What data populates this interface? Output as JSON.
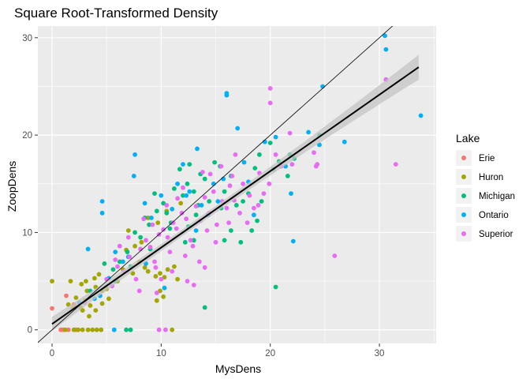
{
  "chart_data": {
    "type": "scatter",
    "title": "Square Root-Transformed Density",
    "xlabel": "MysDens",
    "ylabel": "ZoopDens",
    "xlim": [
      -1.3,
      35.2
    ],
    "ylim": [
      -1.4,
      31.2
    ],
    "x_ticks": [
      0,
      10,
      20,
      30
    ],
    "y_ticks": [
      0,
      10,
      20,
      30
    ],
    "grid": true,
    "background": "#ebebeb",
    "legend": {
      "title": "Lake",
      "position": "right",
      "items": [
        {
          "name": "Erie",
          "color": "#F8766D"
        },
        {
          "name": "Huron",
          "color": "#A3A500"
        },
        {
          "name": "Michigan",
          "color": "#00BF7D"
        },
        {
          "name": "Ontario",
          "color": "#00B0F6"
        },
        {
          "name": "Superior",
          "color": "#E76BF3"
        }
      ]
    },
    "reference_line": {
      "intercept": 0,
      "slope": 1,
      "color": "#000000"
    },
    "fit_line": {
      "method": "lm",
      "x_range": [
        0,
        33.6
      ],
      "intercept": 0.6,
      "slope": 0.785,
      "se_band": true,
      "band_color": "#c4c4c4",
      "color": "#000000"
    },
    "series": [
      {
        "name": "Erie",
        "color": "#F8766D",
        "points": [
          [
            0,
            2.2
          ],
          [
            1.3,
            3.5
          ],
          [
            1.0,
            0
          ],
          [
            1.5,
            0
          ],
          [
            2.2,
            0
          ],
          [
            0.8,
            0
          ],
          [
            2.0,
            2.6
          ]
        ]
      },
      {
        "name": "Huron",
        "color": "#A3A500",
        "points": [
          [
            0,
            5
          ],
          [
            1.7,
            5
          ],
          [
            2.7,
            4.7
          ],
          [
            3.1,
            5
          ],
          [
            3.9,
            5.3
          ],
          [
            4.3,
            5.7
          ],
          [
            2.2,
            3.3
          ],
          [
            3.0,
            3.0
          ],
          [
            3.5,
            2.5
          ],
          [
            4.0,
            4.4
          ],
          [
            3.2,
            4.0
          ],
          [
            2.6,
            2.3
          ],
          [
            1.9,
            2.2
          ],
          [
            1.5,
            2.6
          ],
          [
            4.6,
            4.0
          ],
          [
            4.6,
            2.7
          ],
          [
            5.2,
            3.2
          ],
          [
            5.0,
            4.2
          ],
          [
            6.0,
            5.0
          ],
          [
            6.5,
            6.2
          ],
          [
            7.0,
            7.5
          ],
          [
            7.4,
            5.8
          ],
          [
            8.0,
            7.0
          ],
          [
            8.5,
            6.4
          ],
          [
            8.8,
            6.0
          ],
          [
            9.5,
            5.5
          ],
          [
            9.9,
            4.0
          ],
          [
            9.9,
            5.8
          ],
          [
            10.3,
            5.4
          ],
          [
            10.6,
            6.2
          ],
          [
            9.6,
            3.0
          ],
          [
            10.2,
            3.4
          ],
          [
            11.2,
            6.5
          ],
          [
            11.5,
            5.2
          ],
          [
            6.8,
            8.2
          ],
          [
            7.6,
            8.6
          ],
          [
            8.2,
            9.0
          ],
          [
            7.0,
            10.2
          ],
          [
            8.8,
            11.5
          ],
          [
            9.7,
            11.0
          ],
          [
            10.5,
            12.2
          ],
          [
            11.8,
            13.0
          ],
          [
            2.0,
            0
          ],
          [
            2.4,
            0
          ],
          [
            2.8,
            0
          ],
          [
            3.3,
            0
          ],
          [
            3.7,
            0
          ],
          [
            4.1,
            0
          ],
          [
            4.5,
            0
          ],
          [
            1.2,
            0
          ],
          [
            11.0,
            0
          ],
          [
            4.0,
            2.0
          ],
          [
            3.4,
            1.4
          ],
          [
            2.8,
            2.0
          ]
        ]
      },
      {
        "name": "Michigan",
        "color": "#00BF7D",
        "points": [
          [
            3.5,
            4.0
          ],
          [
            4.8,
            6.8
          ],
          [
            5.8,
            5.0
          ],
          [
            6.2,
            7.0
          ],
          [
            6.9,
            8.0
          ],
          [
            7.2,
            6.5
          ],
          [
            7.6,
            10.0
          ],
          [
            8.1,
            9.5
          ],
          [
            8.5,
            11.5
          ],
          [
            8.9,
            10.8
          ],
          [
            9.4,
            14.0
          ],
          [
            9.6,
            12.2
          ],
          [
            10.2,
            13.0
          ],
          [
            10.5,
            12.0
          ],
          [
            10.9,
            11.0
          ],
          [
            11.2,
            14.5
          ],
          [
            11.7,
            16.5
          ],
          [
            12.0,
            13.8
          ],
          [
            12.4,
            15.0
          ],
          [
            12.6,
            17.0
          ],
          [
            13.0,
            14.2
          ],
          [
            13.4,
            12.8
          ],
          [
            13.6,
            16.0
          ],
          [
            14.0,
            15.5
          ],
          [
            14.4,
            13.2
          ],
          [
            14.9,
            17.2
          ],
          [
            15.4,
            16.8
          ],
          [
            15.8,
            14.2
          ],
          [
            16.4,
            15.8
          ],
          [
            16.9,
            12.8
          ],
          [
            17.5,
            13.2
          ],
          [
            18.0,
            14.0
          ],
          [
            18.3,
            10.2
          ],
          [
            18.8,
            11.2
          ],
          [
            19.2,
            13.2
          ],
          [
            17.3,
            9.0
          ],
          [
            15.8,
            9.2
          ],
          [
            13.0,
            9.2
          ],
          [
            12.2,
            9.0
          ],
          [
            20.3,
            16.5
          ],
          [
            20.8,
            17.3
          ],
          [
            21.6,
            15.8
          ],
          [
            21.8,
            18.0
          ],
          [
            22.2,
            17.6
          ],
          [
            24.5,
            20.0
          ],
          [
            20.5,
            4.4
          ],
          [
            14.0,
            2.3
          ],
          [
            7.2,
            0
          ],
          [
            6.8,
            0
          ],
          [
            5.6,
            6.2
          ],
          [
            9.0,
            8.3
          ],
          [
            10.8,
            10.4
          ],
          [
            15.5,
            12.5
          ],
          [
            16.4,
            10.2
          ],
          [
            18.6,
            16.6
          ],
          [
            19.0,
            18.0
          ],
          [
            20.0,
            19.2
          ],
          [
            12.5,
            10.6
          ],
          [
            13.2,
            11.8
          ]
        ]
      },
      {
        "name": "Ontario",
        "color": "#00B0F6",
        "points": [
          [
            4.6,
            13.2
          ],
          [
            4.6,
            12.0
          ],
          [
            3.3,
            8.3
          ],
          [
            2.5,
            2.8
          ],
          [
            3.9,
            3.2
          ],
          [
            5.7,
            0
          ],
          [
            5.8,
            8.0
          ],
          [
            6.5,
            7.0
          ],
          [
            7.0,
            7.5
          ],
          [
            7.6,
            18.0
          ],
          [
            7.5,
            15.8
          ],
          [
            8.5,
            13.0
          ],
          [
            9.1,
            11.5
          ],
          [
            10.0,
            13.8
          ],
          [
            11.0,
            12.4
          ],
          [
            11.5,
            15.0
          ],
          [
            12.0,
            17.0
          ],
          [
            12.6,
            14.2
          ],
          [
            13.3,
            18.6
          ],
          [
            13.7,
            12.8
          ],
          [
            14.3,
            11.8
          ],
          [
            14.8,
            15.0
          ],
          [
            15.2,
            13.2
          ],
          [
            15.7,
            15.5
          ],
          [
            16.0,
            24.1
          ],
          [
            16.0,
            24.3
          ],
          [
            17.0,
            20.7
          ],
          [
            17.6,
            17.2
          ],
          [
            18.0,
            15.2
          ],
          [
            18.5,
            11.8
          ],
          [
            19.5,
            19.3
          ],
          [
            20.5,
            19.8
          ],
          [
            21.4,
            16.8
          ],
          [
            21.9,
            14.0
          ],
          [
            22.1,
            9.1
          ],
          [
            23.5,
            20.3
          ],
          [
            24.5,
            19.0
          ],
          [
            24.8,
            25.0
          ],
          [
            26.8,
            19.3
          ],
          [
            30.5,
            30.2
          ],
          [
            30.6,
            28.8
          ],
          [
            30.6,
            25.7
          ],
          [
            33.8,
            22.0
          ],
          [
            12.3,
            13.8
          ],
          [
            13.2,
            10.2
          ],
          [
            10.3,
            4.3
          ],
          [
            8.6,
            6.8
          ],
          [
            5.2,
            5.3
          ],
          [
            4.4,
            3.5
          ]
        ]
      },
      {
        "name": "Superior",
        "color": "#E76BF3",
        "points": [
          [
            3.0,
            2.8
          ],
          [
            5.0,
            5.2
          ],
          [
            5.5,
            4.5
          ],
          [
            6.0,
            6.5
          ],
          [
            6.6,
            6.0
          ],
          [
            7.1,
            7.5
          ],
          [
            7.7,
            5.2
          ],
          [
            8.1,
            8.3
          ],
          [
            8.6,
            9.2
          ],
          [
            9.0,
            8.5
          ],
          [
            9.4,
            7.0
          ],
          [
            9.8,
            9.8
          ],
          [
            10.2,
            10.3
          ],
          [
            10.6,
            9.5
          ],
          [
            11.1,
            11.0
          ],
          [
            11.4,
            10.4
          ],
          [
            11.9,
            12.0
          ],
          [
            12.3,
            11.4
          ],
          [
            12.7,
            9.2
          ],
          [
            13.2,
            12.7
          ],
          [
            13.6,
            11.2
          ],
          [
            14.0,
            13.6
          ],
          [
            14.4,
            12.0
          ],
          [
            14.8,
            14.2
          ],
          [
            15.1,
            10.8
          ],
          [
            15.6,
            13.2
          ],
          [
            16.0,
            12.5
          ],
          [
            16.3,
            14.8
          ],
          [
            16.7,
            13.3
          ],
          [
            17.2,
            12.0
          ],
          [
            17.5,
            15.0
          ],
          [
            18.1,
            13.8
          ],
          [
            18.5,
            12.5
          ],
          [
            19.0,
            16.1
          ],
          [
            19.4,
            14.0
          ],
          [
            19.9,
            15.0
          ],
          [
            20.5,
            18.0
          ],
          [
            21.0,
            16.8
          ],
          [
            22.0,
            17.0
          ],
          [
            20.0,
            23.3
          ],
          [
            20.0,
            24.8
          ],
          [
            21.8,
            20.2
          ],
          [
            24.0,
            18.2
          ],
          [
            24.2,
            16.8
          ],
          [
            24.3,
            17.0
          ],
          [
            25.9,
            7.6
          ],
          [
            31.5,
            17.0
          ],
          [
            30.6,
            25.7
          ],
          [
            12.4,
            5.0
          ],
          [
            13.0,
            4.6
          ],
          [
            12.2,
            7.6
          ],
          [
            13.5,
            7.0
          ],
          [
            11.0,
            6.0
          ],
          [
            10.0,
            5.2
          ],
          [
            9.6,
            3.8
          ],
          [
            8.0,
            4.0
          ],
          [
            10.4,
            0
          ],
          [
            9.8,
            0
          ],
          [
            14.0,
            6.4
          ],
          [
            15.0,
            9.0
          ],
          [
            16.2,
            11.0
          ],
          [
            17.9,
            11.0
          ],
          [
            18.9,
            12.8
          ],
          [
            14.5,
            16.0
          ],
          [
            15.5,
            16.8
          ],
          [
            16.8,
            18.0
          ],
          [
            13.8,
            16.2
          ],
          [
            12.0,
            14.6
          ],
          [
            11.5,
            13.5
          ],
          [
            10.5,
            12.8
          ],
          [
            9.2,
            10.8
          ],
          [
            8.4,
            11.4
          ],
          [
            7.0,
            9.5
          ],
          [
            6.2,
            8.6
          ],
          [
            5.8,
            7.2
          ],
          [
            9.5,
            6.4
          ],
          [
            10.8,
            8.0
          ],
          [
            12.9,
            8.6
          ],
          [
            14.2,
            10.2
          ],
          [
            16.5,
            15.8
          ]
        ]
      }
    ]
  }
}
